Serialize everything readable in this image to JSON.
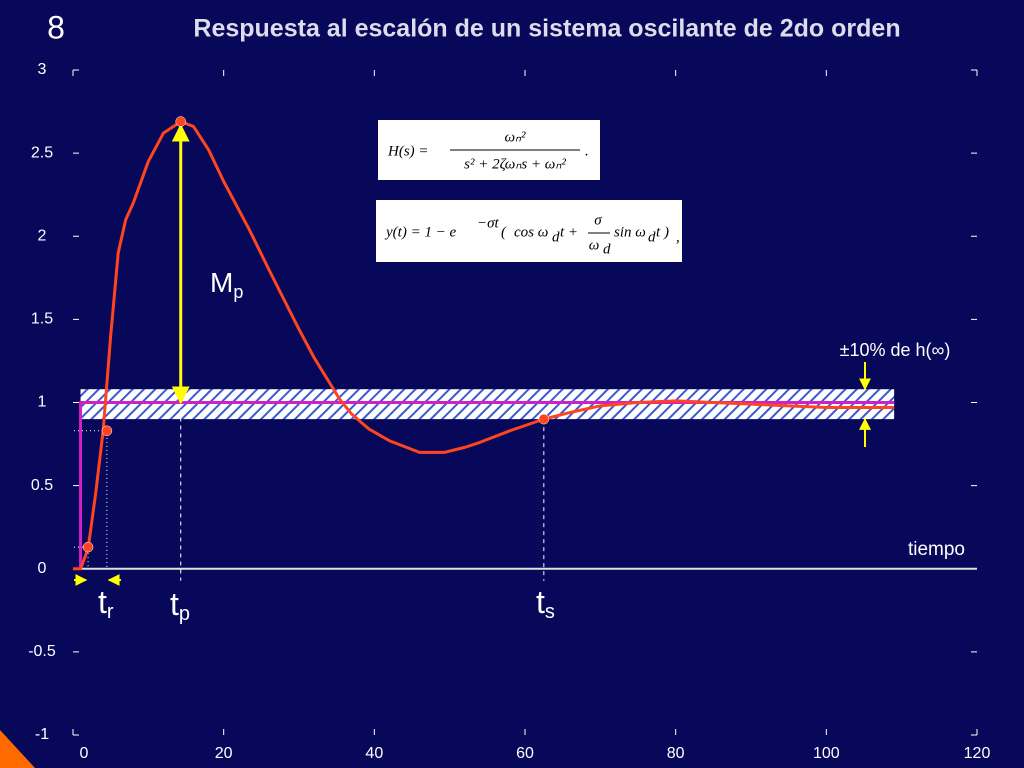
{
  "slide_number": "8",
  "chart_data": {
    "type": "line",
    "title": "Respuesta al escalón de un sistema oscilante de 2do orden",
    "x_label": "tiempo",
    "xlim": [
      0,
      120
    ],
    "ylim": [
      -1,
      3
    ],
    "xticks": [
      0,
      20,
      40,
      60,
      80,
      100,
      120
    ],
    "yticks": [
      3,
      2.5,
      2,
      1.5,
      1,
      0.5,
      0,
      -0.5,
      -1
    ],
    "series": [
      {
        "color": "#ff4420",
        "x": [
          0,
          1,
          2,
          3,
          4,
          5,
          6,
          7,
          8,
          10,
          12,
          14.3,
          16,
          18,
          20,
          23.4,
          26,
          28,
          30,
          32,
          35.4,
          37,
          39.3,
          42,
          46,
          49.3,
          52,
          54,
          58,
          62.5,
          66,
          70,
          75,
          80,
          85,
          90,
          95,
          100,
          105,
          109
        ],
        "values": [
          0,
          0,
          0.12,
          0.45,
          0.83,
          1.4,
          1.9,
          2.1,
          2.2,
          2.45,
          2.62,
          2.69,
          2.66,
          2.52,
          2.33,
          2.04,
          1.8,
          1.62,
          1.44,
          1.27,
          1.02,
          0.93,
          0.84,
          0.77,
          0.7,
          0.7,
          0.73,
          0.76,
          0.83,
          0.9,
          0.94,
          0.98,
          1.0,
          1.01,
          1.0,
          0.99,
          0.98,
          0.97,
          0.97,
          0.97
        ]
      },
      {
        "color": "#d020c8",
        "x": [
          1,
          1,
          109
        ],
        "values": [
          0,
          1,
          1
        ]
      }
    ],
    "band": {
      "x": [
        1,
        109
      ],
      "y": [
        0.9,
        1.08
      ],
      "label": "±10% de h(∞)"
    },
    "markers": {
      "color": "#ff4420",
      "x": [
        2,
        4.5,
        14.3,
        62.5
      ],
      "values": [
        0.13,
        0.83,
        2.69,
        0.9
      ]
    },
    "annotations": [
      {
        "text": "t",
        "sub": "r"
      },
      {
        "text": "t",
        "sub": "p"
      },
      {
        "text": "t",
        "sub": "s"
      },
      {
        "text": "M",
        "sub": "p"
      }
    ],
    "formulas": {
      "transfer": [
        "H(s) =",
        "ωₙ²",
        "s² + 2ζωₙs + ωₙ²",
        "."
      ],
      "response": [
        "y(t) = 1 − e",
        "−σt",
        "(",
        "cos ω",
        "d",
        "t +",
        "σ",
        "ω",
        "d",
        "sin ω",
        "d",
        "t",
        ")",
        ","
      ]
    }
  }
}
